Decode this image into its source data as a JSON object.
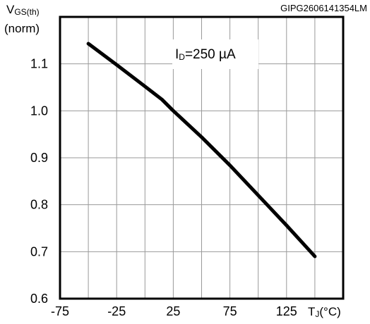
{
  "chart_data": {
    "type": "line",
    "ylabel_main": "V",
    "ylabel_sub": "GS(th)",
    "ylabel_unit": "(norm)",
    "xlabel_main": "T",
    "xlabel_sub": "J",
    "xlabel_unit": "(°C)",
    "figure_code": "GIPG2606141354LM",
    "annotation_main": "I",
    "annotation_sub": "D",
    "annotation_value": "=250 µA",
    "xlim": [
      -75,
      175
    ],
    "ylim": [
      0.6,
      1.2
    ],
    "x_ticks": [
      "-75",
      "-25",
      "25",
      "75",
      "125"
    ],
    "y_ticks": [
      "0.6",
      "0.7",
      "0.8",
      "0.9",
      "1.0",
      "1.1"
    ],
    "grid": true,
    "series": [
      {
        "x": [
          -50,
          -25,
          0,
          15,
          25,
          50,
          75,
          100,
          125,
          150
        ],
        "y": [
          1.143,
          1.098,
          1.052,
          1.024,
          1.0,
          0.944,
          0.884,
          0.82,
          0.756,
          0.69
        ]
      }
    ]
  }
}
